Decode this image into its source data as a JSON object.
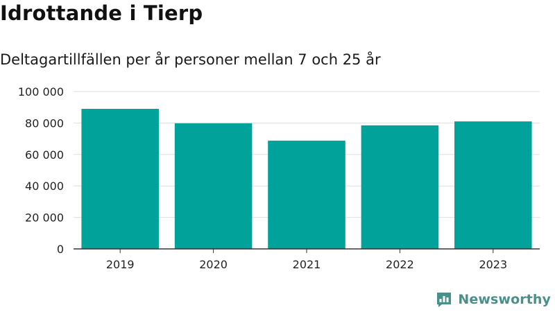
{
  "title": "Idrottande i Tierp",
  "subtitle": "Deltagartillfällen per år personer mellan 7 och 25 år",
  "brand": {
    "name": "Newsworthy",
    "icon": "newsworthy-logo-icon"
  },
  "colors": {
    "bar": "#00a29a",
    "grid": "#dddddd",
    "axis": "#333333",
    "text": "#222222",
    "brand": "#4a8f8a"
  },
  "chart_data": {
    "type": "bar",
    "categories": [
      "2019",
      "2020",
      "2021",
      "2022",
      "2023"
    ],
    "values": [
      89000,
      79800,
      68800,
      78500,
      81000
    ],
    "title": "Idrottande i Tierp",
    "subtitle": "Deltagartillfällen per år personer mellan 7 och 25 år",
    "xlabel": "",
    "ylabel": "",
    "ylim": [
      0,
      100000
    ],
    "yticks": [
      0,
      20000,
      40000,
      60000,
      80000,
      100000
    ],
    "ytick_labels": [
      "0",
      "20 000",
      "40 000",
      "60 000",
      "80 000",
      "100 000"
    ],
    "grid": true,
    "legend": "none"
  }
}
